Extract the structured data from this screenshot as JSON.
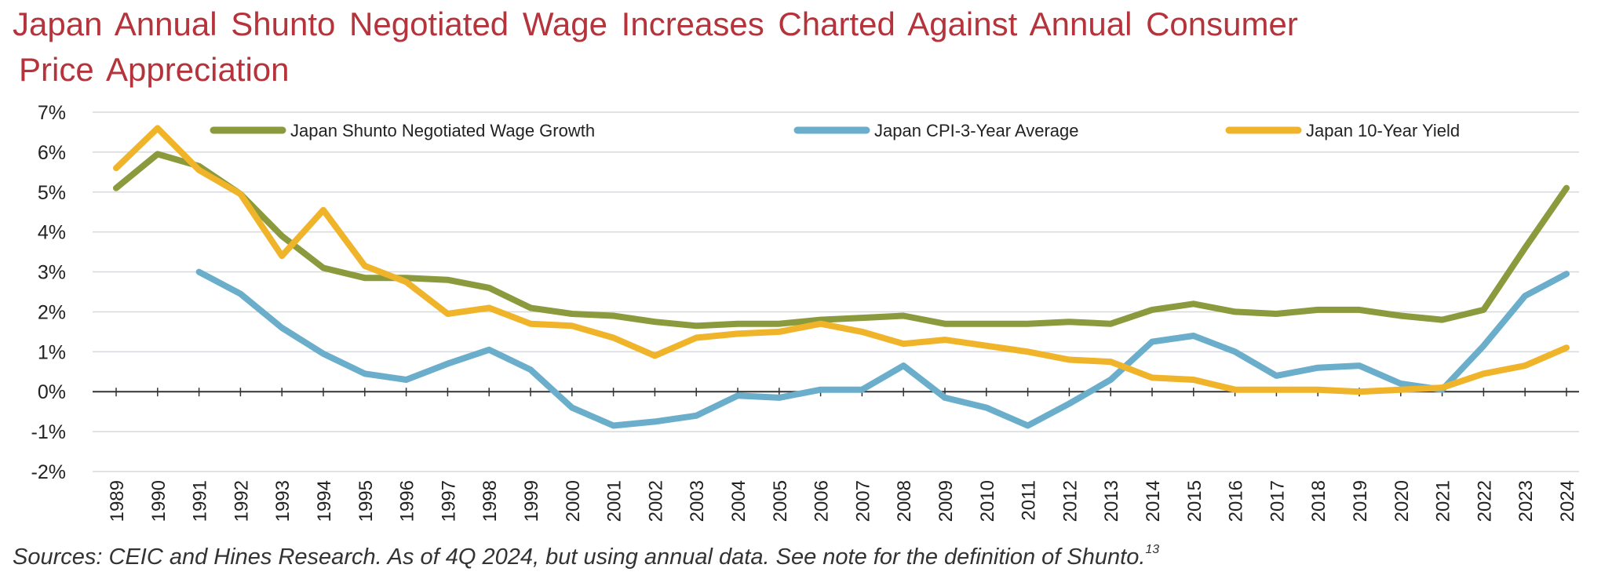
{
  "title_line1": "Japan Annual Shunto Negotiated Wage Increases Charted Against Annual Consumer",
  "title_line2": "Price Appreciation",
  "source_text": "Sources: CEIC and Hines Research. As of 4Q 2024, but using annual data. See note for the definition of Shunto.",
  "source_note": "13",
  "chart_data": {
    "type": "line",
    "title": "Japan Annual Shunto Negotiated Wage Increases Charted Against Annual Consumer Price Appreciation",
    "xlabel": "",
    "ylabel": "",
    "ylim": [
      -2,
      7
    ],
    "y_ticks": [
      -2,
      -1,
      0,
      1,
      2,
      3,
      4,
      5,
      6,
      7
    ],
    "y_tick_labels": [
      "-2%",
      "-1%",
      "0%",
      "1%",
      "2%",
      "3%",
      "4%",
      "5%",
      "6%",
      "7%"
    ],
    "grid": true,
    "legend_position": "top",
    "categories": [
      "1989",
      "1990",
      "1991",
      "1992",
      "1993",
      "1994",
      "1995",
      "1996",
      "1997",
      "1998",
      "1999",
      "2000",
      "2001",
      "2002",
      "2003",
      "2004",
      "2005",
      "2006",
      "2007",
      "2008",
      "2009",
      "2010",
      "2011",
      "2012",
      "2013",
      "2014",
      "2015",
      "2016",
      "2017",
      "2018",
      "2019",
      "2020",
      "2021",
      "2022",
      "2023",
      "2024"
    ],
    "series": [
      {
        "name": "Japan Shunto Negotiated Wage Growth",
        "color": "#8a9a3c",
        "values": [
          5.1,
          5.95,
          5.65,
          4.95,
          3.9,
          3.1,
          2.85,
          2.85,
          2.8,
          2.6,
          2.1,
          1.95,
          1.9,
          1.75,
          1.65,
          1.7,
          1.7,
          1.8,
          1.85,
          1.9,
          1.7,
          1.7,
          1.7,
          1.75,
          1.7,
          2.05,
          2.2,
          2.0,
          1.95,
          2.05,
          2.05,
          1.9,
          1.8,
          2.05,
          3.6,
          5.1
        ]
      },
      {
        "name": "Japan CPI-3-Year Average",
        "color": "#6aaecb",
        "values": [
          null,
          null,
          3.0,
          2.45,
          1.6,
          0.95,
          0.45,
          0.3,
          0.7,
          1.05,
          0.55,
          -0.4,
          -0.85,
          -0.75,
          -0.6,
          -0.1,
          -0.15,
          0.05,
          0.05,
          0.65,
          -0.15,
          -0.4,
          -0.85,
          -0.3,
          0.3,
          1.25,
          1.4,
          1.0,
          0.4,
          0.6,
          0.65,
          0.2,
          0.05,
          1.15,
          2.4,
          2.95
        ]
      },
      {
        "name": "Japan 10-Year Yield",
        "color": "#f0b42a",
        "values": [
          5.6,
          6.6,
          5.55,
          4.95,
          3.4,
          4.55,
          3.15,
          2.75,
          1.95,
          2.1,
          1.7,
          1.65,
          1.35,
          0.9,
          1.35,
          1.45,
          1.5,
          1.7,
          1.5,
          1.2,
          1.3,
          1.15,
          1.0,
          0.8,
          0.75,
          0.35,
          0.3,
          0.05,
          0.05,
          0.05,
          0.0,
          0.05,
          0.1,
          0.45,
          0.65,
          1.1
        ]
      }
    ]
  }
}
